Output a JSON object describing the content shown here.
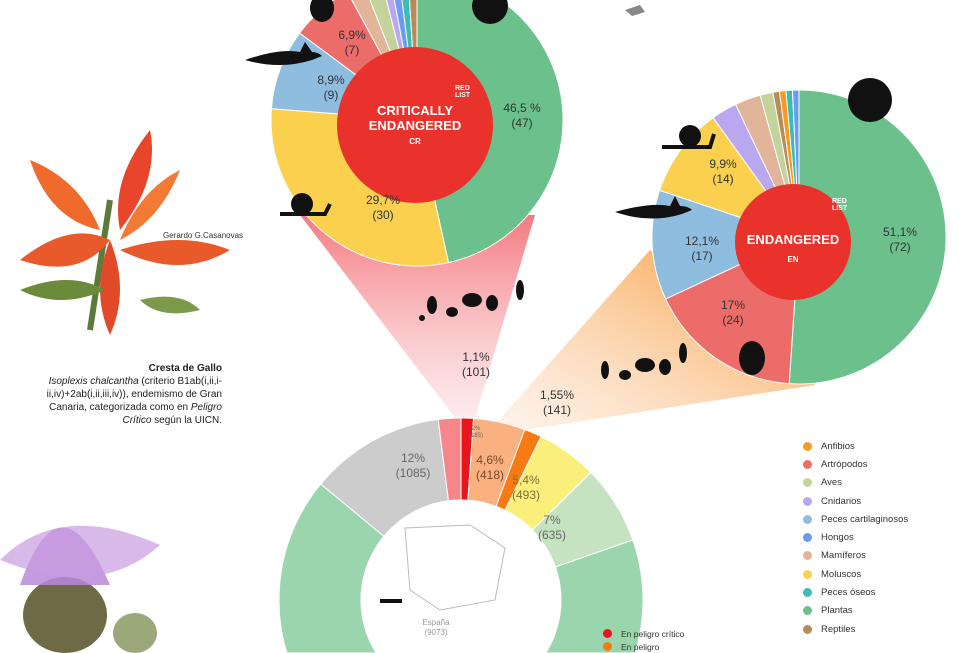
{
  "colors": {
    "Anfibios": "#f59a23",
    "Artrópodos": "#ec6c6a",
    "Aves": "#c4d39c",
    "Cnidarios": "#b9a7f0",
    "Peces cartilaginosos": "#8fbde0",
    "Hongos": "#6b9cf0",
    "Mamíferos": "#e2b59b",
    "Moluscos": "#fcd04f",
    "Peces óseos": "#3bbcb6",
    "Plantas": "#6cc08b",
    "Reptiles": "#b88b57"
  },
  "chart_data": [
    {
      "type": "pie",
      "title": "CRITICALLY ENDANGERED",
      "subtitle": "CR",
      "total": 101,
      "slices": [
        {
          "name": "Plantas",
          "value": 47,
          "label": "46,5 %",
          "count": "(47)"
        },
        {
          "name": "Moluscos",
          "value": 30,
          "label": "29,7%",
          "count": "(30)"
        },
        {
          "name": "Peces cartilaginosos",
          "value": 9,
          "label": "8,9%",
          "count": "(9)"
        },
        {
          "name": "Artrópodos",
          "value": 7,
          "label": "6,9%",
          "count": "(7)"
        },
        {
          "name": "Mamíferos",
          "value": 2
        },
        {
          "name": "Aves",
          "value": 2
        },
        {
          "name": "Cnidarios",
          "value": 1
        },
        {
          "name": "Hongos",
          "value": 1
        },
        {
          "name": "Peces óseos",
          "value": 1
        },
        {
          "name": "Reptiles",
          "value": 1
        }
      ]
    },
    {
      "type": "pie",
      "title": "ENDANGERED",
      "subtitle": "EN",
      "total": 141,
      "slices": [
        {
          "name": "Plantas",
          "value": 72,
          "label": "51,1%",
          "count": "(72)"
        },
        {
          "name": "Artrópodos",
          "value": 24,
          "label": "17%",
          "count": "(24)"
        },
        {
          "name": "Peces cartilaginosos",
          "value": 17,
          "label": "12,1%",
          "count": "(17)"
        },
        {
          "name": "Moluscos",
          "value": 14,
          "label": "9,9%",
          "count": "(14)"
        },
        {
          "name": "Cnidarios",
          "value": 4
        },
        {
          "name": "Mamíferos",
          "value": 4
        },
        {
          "name": "Aves",
          "value": 2
        },
        {
          "name": "Reptiles",
          "value": 1
        },
        {
          "name": "Anfibios",
          "value": 1
        },
        {
          "name": "Peces óseos",
          "value": 1
        },
        {
          "name": "Hongos",
          "value": 1
        }
      ]
    },
    {
      "type": "pie",
      "title": "España",
      "center_label": "España",
      "center_count": "(9073)",
      "slices": [
        {
          "name": "En peligro crítico",
          "value": 1.1,
          "color": "#e8161b"
        },
        {
          "name": "light-orange",
          "value": 4.6,
          "color": "#fbb080",
          "label": "4,6%",
          "count": "(418)"
        },
        {
          "name": "En peligro",
          "value": 1.55,
          "color": "#f77a12"
        },
        {
          "name": "yellow",
          "value": 5.4,
          "color": "#f9ef7a",
          "label": "5,4%",
          "count": "(493)"
        },
        {
          "name": "light-green",
          "value": 7,
          "color": "#c5e3c0",
          "label": "7%",
          "count": "(635)"
        },
        {
          "name": "green",
          "value": 66.35,
          "color": "#9ad5ae"
        },
        {
          "name": "gray",
          "value": 12,
          "color": "#cccccc",
          "label": "12%",
          "count": "(1085)"
        },
        {
          "name": "pink",
          "value": 2,
          "color": "#f6868a",
          "label": "2%",
          "count": "(183)"
        }
      ]
    }
  ],
  "callouts": {
    "cr": {
      "pct": "1,1%",
      "count": "(101)"
    },
    "en": {
      "pct": "1,55%",
      "count": "(141)"
    }
  },
  "badges": {
    "cr_title1": "CRITICALLY",
    "cr_title2": "ENDANGERED",
    "cr_sub": "CR",
    "en_title": "ENDANGERED",
    "en_sub": "EN",
    "logo1": "RED",
    "logo2": "LIST"
  },
  "photo_credit": "Gerardo G.Casanovas",
  "caption": {
    "title": "Cresta de Gallo",
    "italic1": "Isoplexis chalcantha",
    "text1": " (criterio B1ab(i,ii,i-",
    "line2": "ii,iv)+2ab(i,ii,iii,iv)), endemismo de Gran",
    "line3a": "Canaria, categorizada como en ",
    "italic2": "Peligro",
    "italic3": "Crítico",
    "line4": " según la UICN."
  },
  "legend": [
    "Anfibios",
    "Artrópodos",
    "Aves",
    "Cnidarios",
    "Peces cartilaginosos",
    "Hongos",
    "Mamíferos",
    "Moluscos",
    "Peces óseos",
    "Plantas",
    "Reptiles"
  ],
  "legend2": [
    {
      "label": "En peligro crítico",
      "color": "#e8161b"
    },
    {
      "label": "En peligro",
      "color": "#f77a12"
    }
  ]
}
